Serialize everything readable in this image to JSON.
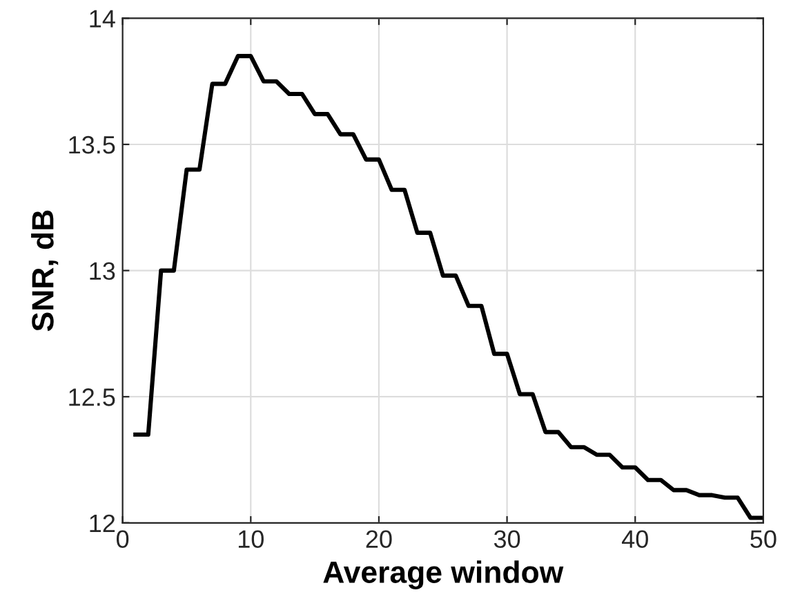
{
  "chart_data": {
    "type": "line",
    "xlabel": "Average window",
    "ylabel": "SNR, dB",
    "x": [
      1,
      2,
      3,
      4,
      5,
      6,
      7,
      8,
      9,
      10,
      11,
      12,
      13,
      14,
      15,
      16,
      17,
      18,
      19,
      20,
      21,
      22,
      23,
      24,
      25,
      26,
      27,
      28,
      29,
      30,
      31,
      32,
      33,
      34,
      35,
      36,
      37,
      38,
      39,
      40,
      41,
      42,
      43,
      44,
      45,
      46,
      47,
      48,
      49,
      50
    ],
    "series": [
      {
        "color": "#000000",
        "values": [
          12.35,
          12.35,
          13.0,
          13.0,
          13.4,
          13.4,
          13.74,
          13.74,
          13.85,
          13.85,
          13.75,
          13.75,
          13.7,
          13.7,
          13.62,
          13.62,
          13.54,
          13.54,
          13.44,
          13.44,
          13.32,
          13.32,
          13.15,
          13.15,
          12.98,
          12.98,
          12.86,
          12.86,
          12.67,
          12.67,
          12.51,
          12.51,
          12.36,
          12.36,
          12.3,
          12.3,
          12.27,
          12.27,
          12.22,
          12.22,
          12.17,
          12.17,
          12.13,
          12.13,
          12.11,
          12.11,
          12.1,
          12.1,
          12.02,
          12.02
        ]
      }
    ],
    "xlim": [
      0,
      50
    ],
    "xticks": [
      0,
      10,
      20,
      30,
      40,
      50
    ],
    "ylim": [
      12,
      14
    ],
    "yticks": [
      12,
      12.5,
      13,
      13.5,
      14
    ],
    "grid": true,
    "marker": "none",
    "line_style": "solid"
  }
}
